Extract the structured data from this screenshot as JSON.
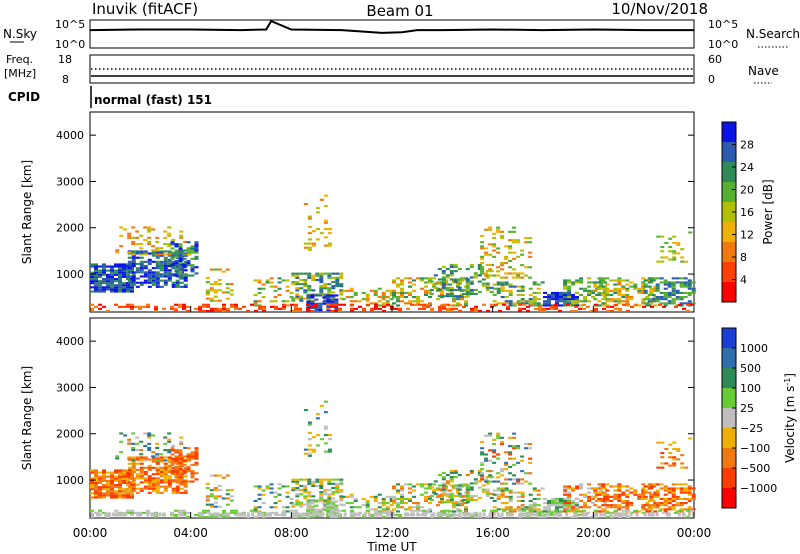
{
  "header": {
    "station": "Inuvik (fitACF)",
    "beam": "Beam 01",
    "date": "10/Nov/2018"
  },
  "top_panels": {
    "nsky_label": "N.Sky",
    "nsky_ticks": [
      "10^5",
      "10^0"
    ],
    "nsearch_label": "N.Search",
    "nsearch_ticks": [
      "10^5",
      "10^0"
    ],
    "freq_label": "Freq.",
    "freq_unit": "[MHz]",
    "freq_ticks": [
      "18",
      "8"
    ],
    "nave_label": "Nave",
    "nave_ticks": [
      "60",
      "0"
    ],
    "cpid_label": "CPID",
    "cpid_value": "normal (fast) 151"
  },
  "colors": {
    "velocity_scale": [
      "#1a3fd6",
      "#2e6fae",
      "#2e8b57",
      "#66cc33",
      "#bfbfbf",
      "#f0b000",
      "#f07a10",
      "#ff3b00",
      "#ff0000"
    ],
    "power_scale": [
      "#0a14e6",
      "#2a5bb0",
      "#2e8b57",
      "#55b030",
      "#b0c000",
      "#f0b000",
      "#f07a10",
      "#ff4000",
      "#ff0000"
    ]
  },
  "chart_data": [
    {
      "type": "line",
      "panel": "N.Sky / N.Search",
      "ylim": [
        "10^0",
        "10^5"
      ],
      "x_hours": [
        0,
        2,
        4,
        6,
        7,
        7.2,
        8,
        10,
        11.6,
        12.4,
        13,
        14,
        16,
        18,
        20,
        22,
        24
      ],
      "series": [
        {
          "values": [
            3.2,
            3.3,
            3.3,
            3.2,
            3.3,
            4.8,
            3.3,
            3.2,
            2.7,
            2.8,
            3.2,
            3.2,
            3.3,
            3.2,
            3.3,
            3.2,
            3.2
          ]
        }
      ]
    },
    {
      "type": "scatter",
      "panel": "Freq. / Nave",
      "freq_ylim": [
        8,
        18
      ],
      "nave_ylim": [
        0,
        60
      ],
      "freq_line_mhz": 10.5,
      "nave_dotted_value": 30
    },
    {
      "type": "heatmap",
      "panel": "Power",
      "ylabel": "Slant Range [km]",
      "yticks": [
        "4000",
        "3000",
        "2000",
        "1000"
      ],
      "ylim": [
        180,
        4500
      ],
      "xlim_hours": [
        0,
        24
      ],
      "colorbar_label": "Power [dB]",
      "colorbar_ticks": [
        "28",
        "24",
        "20",
        "16",
        "12",
        "8",
        "4"
      ],
      "colorbar_range": [
        0,
        32
      ]
    },
    {
      "type": "heatmap",
      "panel": "Velocity",
      "ylabel": "Slant Range [km]",
      "yticks": [
        "4000",
        "3000",
        "2000",
        "1000"
      ],
      "ylim": [
        180,
        4500
      ],
      "xlim_hours": [
        0,
        24
      ],
      "xticks": [
        "00:00",
        "04:00",
        "08:00",
        "12:00",
        "16:00",
        "20:00",
        "00:00"
      ],
      "xlabel": "Time UT",
      "colorbar_label": "Velocity [m s",
      "colorbar_label_sup": "-1",
      "colorbar_label_end": "]",
      "colorbar_ticks": [
        "1000",
        "500",
        "100",
        "25",
        "−25",
        "−100",
        "−500",
        "−1000"
      ]
    }
  ]
}
